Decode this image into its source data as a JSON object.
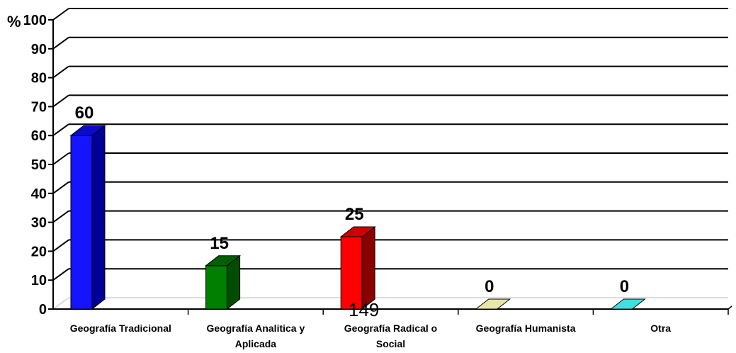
{
  "chart_data": {
    "type": "bar",
    "title": "",
    "xlabel": "",
    "ylabel": "%",
    "ylim": [
      0,
      100
    ],
    "yticks": [
      0,
      10,
      20,
      30,
      40,
      50,
      60,
      70,
      80,
      90,
      100
    ],
    "grid": true,
    "legend": "none",
    "three_d": true,
    "categories": [
      "Geografía Tradicional",
      "Geografía Analitica y Aplicada",
      "Geografía Radical o Social",
      "Geografía Humanista",
      "Otra"
    ],
    "category_label_lines": [
      [
        "Geografía Tradicional"
      ],
      [
        "Geografía Analitica y",
        "Aplicada"
      ],
      [
        "Geografía Radical o",
        "Social"
      ],
      [
        "Geografía Humanista"
      ],
      [
        "Otra"
      ]
    ],
    "values": [
      60,
      15,
      25,
      0,
      0
    ],
    "data_labels": [
      "60",
      "15",
      "25",
      "0",
      "0"
    ],
    "colors": {
      "bar_fronts": [
        "#1414FF",
        "#008000",
        "#FF0000",
        "#C8C88C",
        "#20C8C8"
      ],
      "bar_sides": [
        "#000099",
        "#004D00",
        "#8B0000",
        "#8C8C5A",
        "#108A8A"
      ],
      "bar_tops": [
        "#0A0ACC",
        "#006000",
        "#D00000",
        "#E6E6A8",
        "#40E0E0"
      ],
      "grid": "#000000",
      "axis": "#000000",
      "text": "#000000"
    }
  },
  "page_number": "149"
}
